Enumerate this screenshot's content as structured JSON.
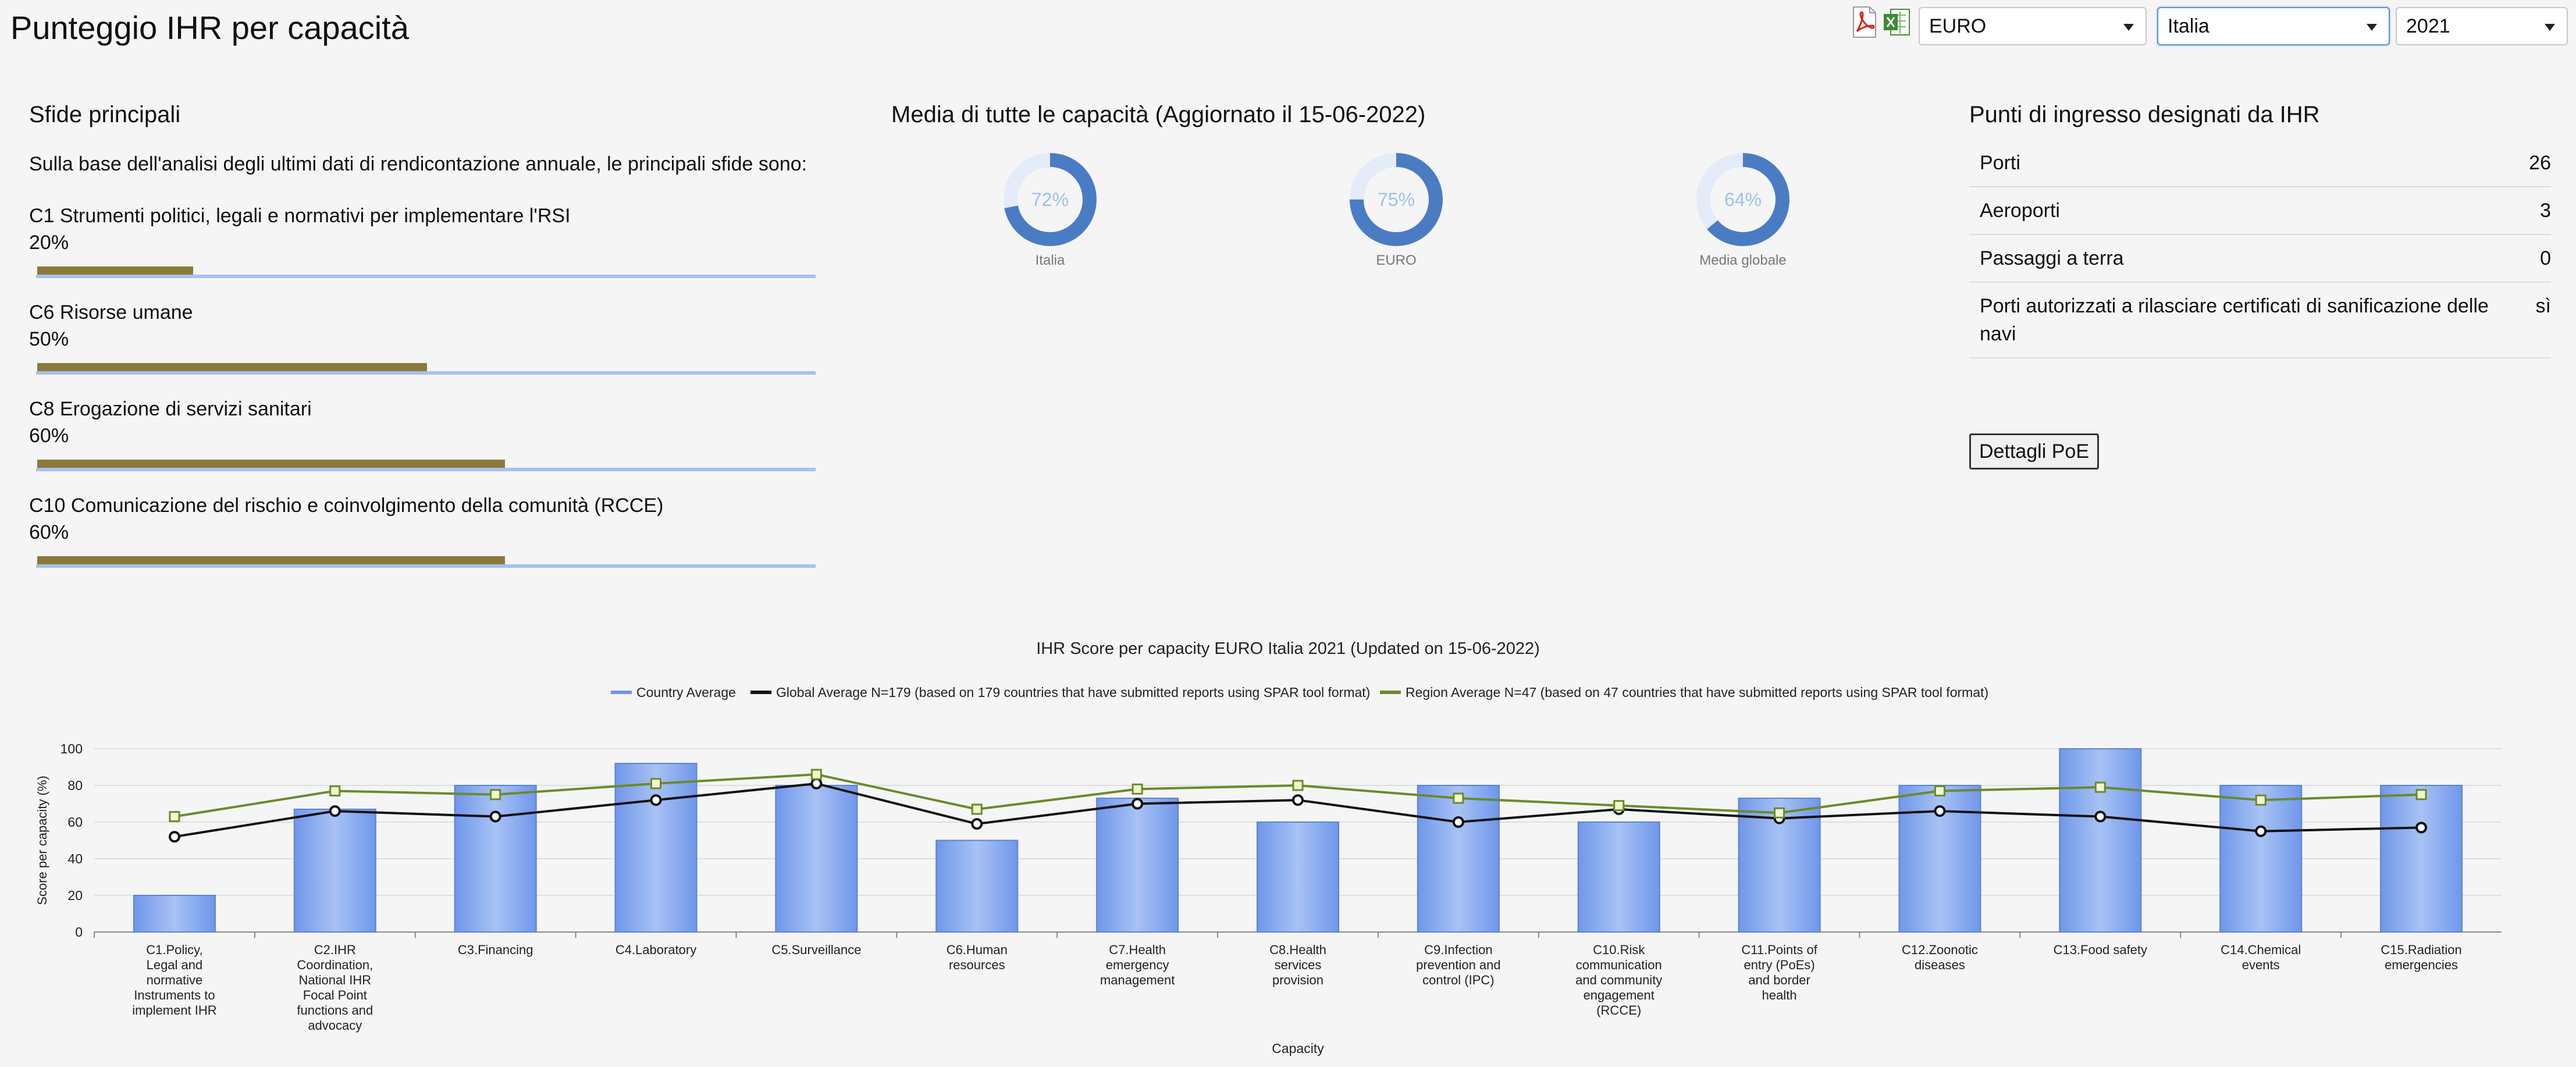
{
  "page": {
    "title": "Punteggio IHR per capacità"
  },
  "toolbar": {
    "icons": [
      "pdf-icon",
      "excel-icon"
    ],
    "region_select": "EURO",
    "country_select": "Italia",
    "year_select": "2021"
  },
  "challenges": {
    "title": "Sfide principali",
    "intro": "Sulla base dell'analisi degli ultimi dati di rendicontazione annuale, le principali sfide sono:",
    "items": [
      {
        "label": "C1 Strumenti politici, legali e normativi per implementare l'RSI",
        "pct": "20%",
        "value": 20
      },
      {
        "label": "C6 Risorse umane",
        "pct": "50%",
        "value": 50
      },
      {
        "label": "C8 Erogazione di servizi sanitari",
        "pct": "60%",
        "value": 60
      },
      {
        "label": "C10 Comunicazione del rischio e coinvolgimento della comunità (RCCE)",
        "pct": "60%",
        "value": 60
      }
    ]
  },
  "average": {
    "title": "Media di tutte le capacità (Aggiornato il 15-06-2022)",
    "donuts": [
      {
        "label": "Italia",
        "text": "72%",
        "value": 72
      },
      {
        "label": "EURO",
        "text": "75%",
        "value": 75
      },
      {
        "label": "Media globale",
        "text": "64%",
        "value": 64
      }
    ]
  },
  "poe": {
    "title": "Punti di ingresso designati da IHR",
    "rows": [
      {
        "k": "Porti",
        "v": "26"
      },
      {
        "k": "Aeroporti",
        "v": "3"
      },
      {
        "k": "Passaggi a terra",
        "v": "0"
      },
      {
        "k": "Porti autorizzati a rilasciare certificati di sanificazione delle navi",
        "v": "sì"
      }
    ],
    "button": "Dettagli PoE"
  },
  "colors": {
    "bar": "#6f97ea",
    "global": "#111111",
    "region": "#6b8a2a",
    "donut": "#4a7cc4",
    "donut_bg": "#e3ecf8"
  },
  "chart_data": {
    "type": "bar",
    "title": "IHR Score per capacity EURO Italia 2021  (Updated on 15-06-2022)",
    "xlabel": "Capacity",
    "ylabel": "Score per capacity (%)",
    "ylim": [
      0,
      100
    ],
    "yticks": [
      0,
      20,
      40,
      60,
      80,
      100
    ],
    "legend": [
      "Country Average",
      "Global Average   N=179   (based on 179 countries that have submitted reports using SPAR tool format)",
      "Region Average  N=47   (based on 47 countries that have submitted reports using SPAR tool format)"
    ],
    "categories": [
      [
        "C1.Policy,",
        "Legal and",
        "normative",
        "Instruments to",
        "implement IHR"
      ],
      [
        "C2.IHR",
        "Coordination,",
        "National IHR",
        "Focal Point",
        "functions and",
        "advocacy"
      ],
      [
        "C3.Financing"
      ],
      [
        "C4.Laboratory"
      ],
      [
        "C5.Surveillance"
      ],
      [
        "C6.Human",
        "resources"
      ],
      [
        "C7.Health",
        "emergency",
        "management"
      ],
      [
        "C8.Health",
        "services",
        "provision"
      ],
      [
        "C9.Infection",
        "prevention and",
        "control (IPC)"
      ],
      [
        "C10.Risk",
        "communication",
        "and community",
        "engagement",
        "(RCCE)"
      ],
      [
        "C11.Points of",
        "entry (PoEs)",
        "and border",
        "health"
      ],
      [
        "C12.Zoonotic",
        "diseases"
      ],
      [
        "C13.Food safety"
      ],
      [
        "C14.Chemical",
        "events"
      ],
      [
        "C15.Radiation",
        "emergencies"
      ]
    ],
    "series": [
      {
        "name": "Country Average",
        "kind": "bar",
        "values": [
          20,
          67,
          80,
          92,
          80,
          50,
          73,
          60,
          80,
          60,
          73,
          80,
          100,
          80,
          80
        ]
      },
      {
        "name": "Global Average",
        "kind": "line",
        "values": [
          52,
          66,
          63,
          72,
          81,
          59,
          70,
          72,
          60,
          67,
          62,
          66,
          63,
          55,
          57
        ]
      },
      {
        "name": "Region Average",
        "kind": "line",
        "values": [
          63,
          77,
          75,
          81,
          86,
          67,
          78,
          80,
          73,
          69,
          65,
          77,
          79,
          72,
          75
        ]
      }
    ]
  }
}
